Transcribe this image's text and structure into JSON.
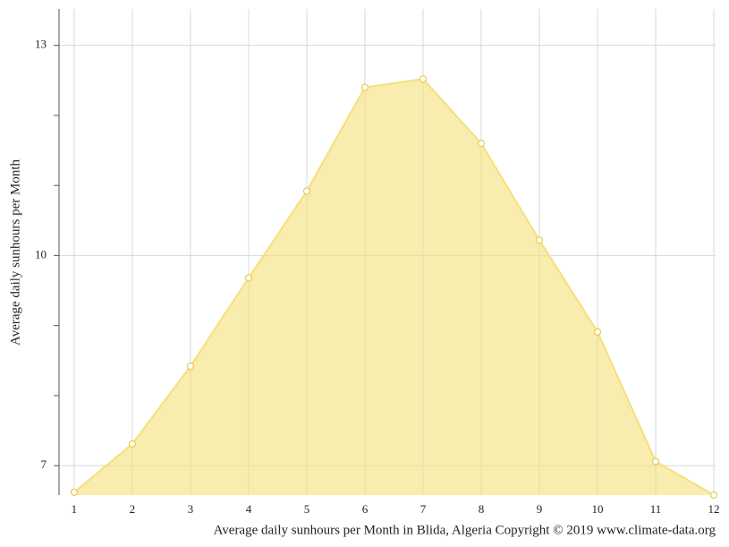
{
  "chart_data": {
    "type": "area",
    "ylabel": "Average daily sunhours per Month",
    "caption": "Average daily sunhours per Month in Blida, Algeria Copyright © 2019 www.climate-data.org",
    "x": [
      1,
      2,
      3,
      4,
      5,
      6,
      7,
      8,
      9,
      10,
      11,
      12
    ],
    "values": [
      6.62,
      7.31,
      8.42,
      9.68,
      10.92,
      12.4,
      12.52,
      11.6,
      10.22,
      8.91,
      7.06,
      6.58
    ],
    "color": "#f5e07a",
    "xlim": [
      0.74,
      12.03
    ],
    "ylim": [
      6.58,
      13.52
    ],
    "xticks": [
      1,
      2,
      3,
      4,
      5,
      6,
      7,
      8,
      9,
      10,
      11,
      12
    ],
    "yticks": [
      7,
      10,
      13
    ],
    "yminorticks": [
      8,
      9,
      11,
      12
    ],
    "grid": true
  }
}
